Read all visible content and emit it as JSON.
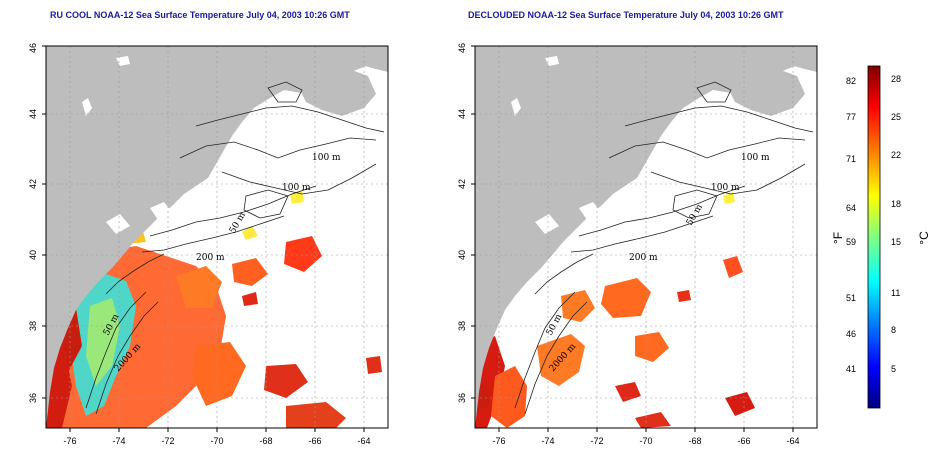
{
  "panels": [
    {
      "title": "RU COOL NOAA-12 Sea Surface Temperature July 04, 2003 10:26 GMT",
      "contour_labels": [
        "100 m",
        "100 m",
        "50 m",
        "200 m",
        "50 m",
        "2000 m"
      ]
    },
    {
      "title": "DECLOUDED NOAA-12 Sea Surface Temperature July 04, 2003 10:26 GMT",
      "contour_labels": [
        "100 m",
        "100 m",
        "50 m",
        "200 m",
        "50 m",
        "2000 m"
      ]
    }
  ],
  "lon_ticks": [
    "-76",
    "-74",
    "-72",
    "-70",
    "-68",
    "-66",
    "-64"
  ],
  "lat_ticks": [
    "36",
    "38",
    "40",
    "42",
    "44",
    "46"
  ],
  "colorbar": {
    "fahrenheit_label": "°F",
    "celsius_label": "°C",
    "fahrenheit_ticks": [
      "82",
      "77",
      "71",
      "64",
      "59",
      "51",
      "46",
      "41"
    ],
    "celsius_ticks": [
      "28",
      "25",
      "22",
      "18",
      "15",
      "11",
      "8",
      "5"
    ],
    "colors": [
      "#000080",
      "#0000ff",
      "#0080ff",
      "#00ffff",
      "#80ff80",
      "#ffff00",
      "#ff8000",
      "#ff0000",
      "#800000"
    ]
  },
  "colors": {
    "land": "#bdbdbd",
    "ocean": "#ffffff",
    "title": "#1a1aa0",
    "grid": "#999999"
  }
}
